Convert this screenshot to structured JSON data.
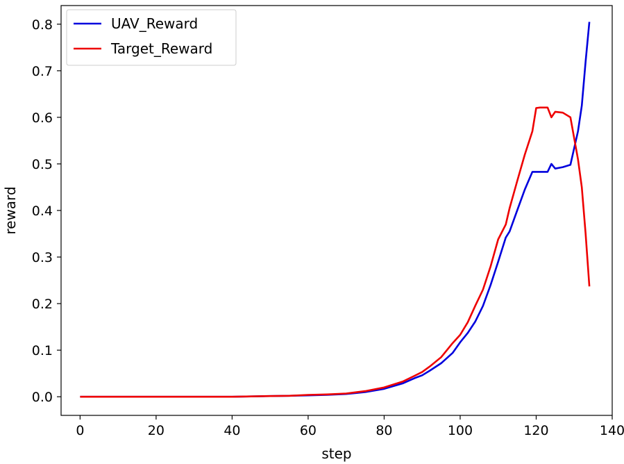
{
  "chart_data": {
    "type": "line",
    "title": "",
    "xlabel": "step",
    "ylabel": "reward",
    "xlim": [
      -5,
      140
    ],
    "ylim": [
      -0.04,
      0.84
    ],
    "x_ticks": [
      0,
      20,
      40,
      60,
      80,
      100,
      120,
      140
    ],
    "y_ticks": [
      0.0,
      0.1,
      0.2,
      0.3,
      0.4,
      0.5,
      0.6,
      0.7,
      0.8
    ],
    "x_tick_labels": [
      "0",
      "20",
      "40",
      "60",
      "80",
      "100",
      "120",
      "140"
    ],
    "y_tick_labels": [
      "0.0",
      "0.1",
      "0.2",
      "0.3",
      "0.4",
      "0.5",
      "0.6",
      "0.7",
      "0.8"
    ],
    "grid": false,
    "legend_position": "top-left",
    "series": [
      {
        "name": "UAV_Reward",
        "color": "#0000dd",
        "x": [
          0,
          10,
          20,
          30,
          40,
          50,
          55,
          60,
          65,
          70,
          75,
          80,
          85,
          88,
          90,
          92,
          95,
          98,
          100,
          102,
          104,
          106,
          108,
          110,
          112,
          113,
          115,
          117,
          119,
          120,
          121,
          123,
          124,
          125,
          127,
          129,
          131,
          132,
          133,
          134
        ],
        "y": [
          0.0,
          0.0,
          0.0,
          0.0,
          0.0,
          0.0015,
          0.002,
          0.003,
          0.004,
          0.006,
          0.01,
          0.017,
          0.029,
          0.04,
          0.046,
          0.056,
          0.072,
          0.094,
          0.117,
          0.137,
          0.162,
          0.195,
          0.24,
          0.29,
          0.342,
          0.355,
          0.4,
          0.445,
          0.483,
          0.483,
          0.483,
          0.483,
          0.5,
          0.49,
          0.493,
          0.498,
          0.57,
          0.625,
          0.72,
          0.805
        ]
      },
      {
        "name": "Target_Reward",
        "color": "#ee0000",
        "x": [
          0,
          10,
          20,
          30,
          40,
          50,
          55,
          60,
          65,
          70,
          75,
          80,
          85,
          88,
          90,
          92,
          95,
          98,
          100,
          102,
          104,
          106,
          108,
          110,
          112,
          113,
          115,
          117,
          119,
          120,
          121,
          123,
          124,
          125,
          127,
          129,
          131,
          132,
          133,
          134
        ],
        "y": [
          0.0,
          0.0,
          0.0,
          0.0,
          0.0,
          0.0015,
          0.002,
          0.004,
          0.005,
          0.007,
          0.012,
          0.02,
          0.033,
          0.045,
          0.053,
          0.065,
          0.085,
          0.115,
          0.133,
          0.16,
          0.196,
          0.23,
          0.28,
          0.338,
          0.37,
          0.405,
          0.463,
          0.52,
          0.57,
          0.62,
          0.621,
          0.621,
          0.6,
          0.612,
          0.61,
          0.6,
          0.51,
          0.45,
          0.35,
          0.237
        ]
      }
    ]
  }
}
